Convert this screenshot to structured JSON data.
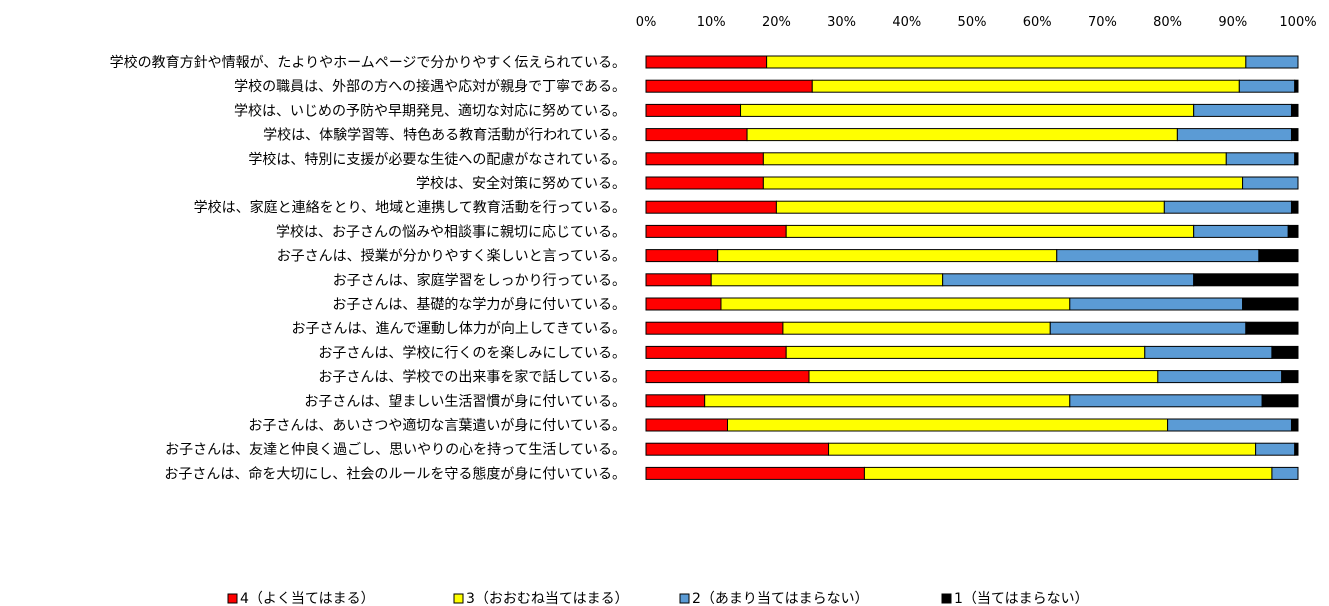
{
  "chart_data": {
    "type": "bar",
    "orientation": "horizontal",
    "stacked": "percent",
    "xlim": [
      0,
      100
    ],
    "x_ticks": [
      "0%",
      "10%",
      "20%",
      "30%",
      "40%",
      "50%",
      "60%",
      "70%",
      "80%",
      "90%",
      "100%"
    ],
    "x_axis_position": "top",
    "grid": false,
    "legend_position": "bottom",
    "categories": [
      "学校の教育方針や情報が、たよりやホームページで分かりやすく伝えられている。",
      "学校の職員は、外部の方への接遇や応対が親身で丁寧である。",
      "学校は、いじめの予防や早期発見、適切な対応に努めている。",
      "学校は、体験学習等、特色ある教育活動が行われている。",
      "学校は、特別に支援が必要な生徒への配慮がなされている。",
      "学校は、安全対策に努めている。",
      "学校は、家庭と連絡をとり、地域と連携して教育活動を行っている。",
      "学校は、お子さんの悩みや相談事に親切に応じている。",
      "お子さんは、授業が分かりやすく楽しいと言っている。",
      "お子さんは、家庭学習をしっかり行っている。",
      "お子さんは、基礎的な学力が身に付いている。",
      "お子さんは、進んで運動し体力が向上してきている。",
      "お子さんは、学校に行くのを楽しみにしている。",
      "お子さんは、学校での出来事を家で話している。",
      "お子さんは、望ましい生活習慣が身に付いている。",
      "お子さんは、あいさつや適切な言葉遣いが身に付いている。",
      "お子さんは、友達と仲良く過ごし、思いやりの心を持って生活している。",
      "お子さんは、命を大切にし、社会のルールを守る態度が身に付いている。"
    ],
    "series": [
      {
        "name": "4（よく当てはまる）",
        "color": "#ff0000",
        "values": [
          18.5,
          25.5,
          14.5,
          15.5,
          18,
          18,
          20,
          21.5,
          11,
          10,
          11.5,
          21,
          21.5,
          25,
          9,
          12.5,
          28,
          33.5
        ]
      },
      {
        "name": "3（おおむね当てはまる）",
        "color": "#ffff00",
        "values": [
          73.5,
          65.5,
          69.5,
          66,
          71,
          73.5,
          59.5,
          62.5,
          52,
          35.5,
          53.5,
          41,
          55,
          53.5,
          56,
          67.5,
          65.5,
          62.5
        ]
      },
      {
        "name": "2（あまり当てはまらない）",
        "color": "#5b9bd5",
        "values": [
          8,
          8.5,
          15,
          17.5,
          10.5,
          8.5,
          19.5,
          14.5,
          31,
          38.5,
          26.5,
          30,
          19.5,
          19,
          29.5,
          19,
          6,
          4
        ]
      },
      {
        "name": "1（当てはまらない）",
        "color": "#000000",
        "values": [
          0,
          0.5,
          1,
          1,
          0.5,
          0,
          1,
          1.5,
          6,
          16,
          8.5,
          8,
          4,
          2.5,
          5.5,
          1,
          0.5,
          0
        ]
      }
    ]
  }
}
